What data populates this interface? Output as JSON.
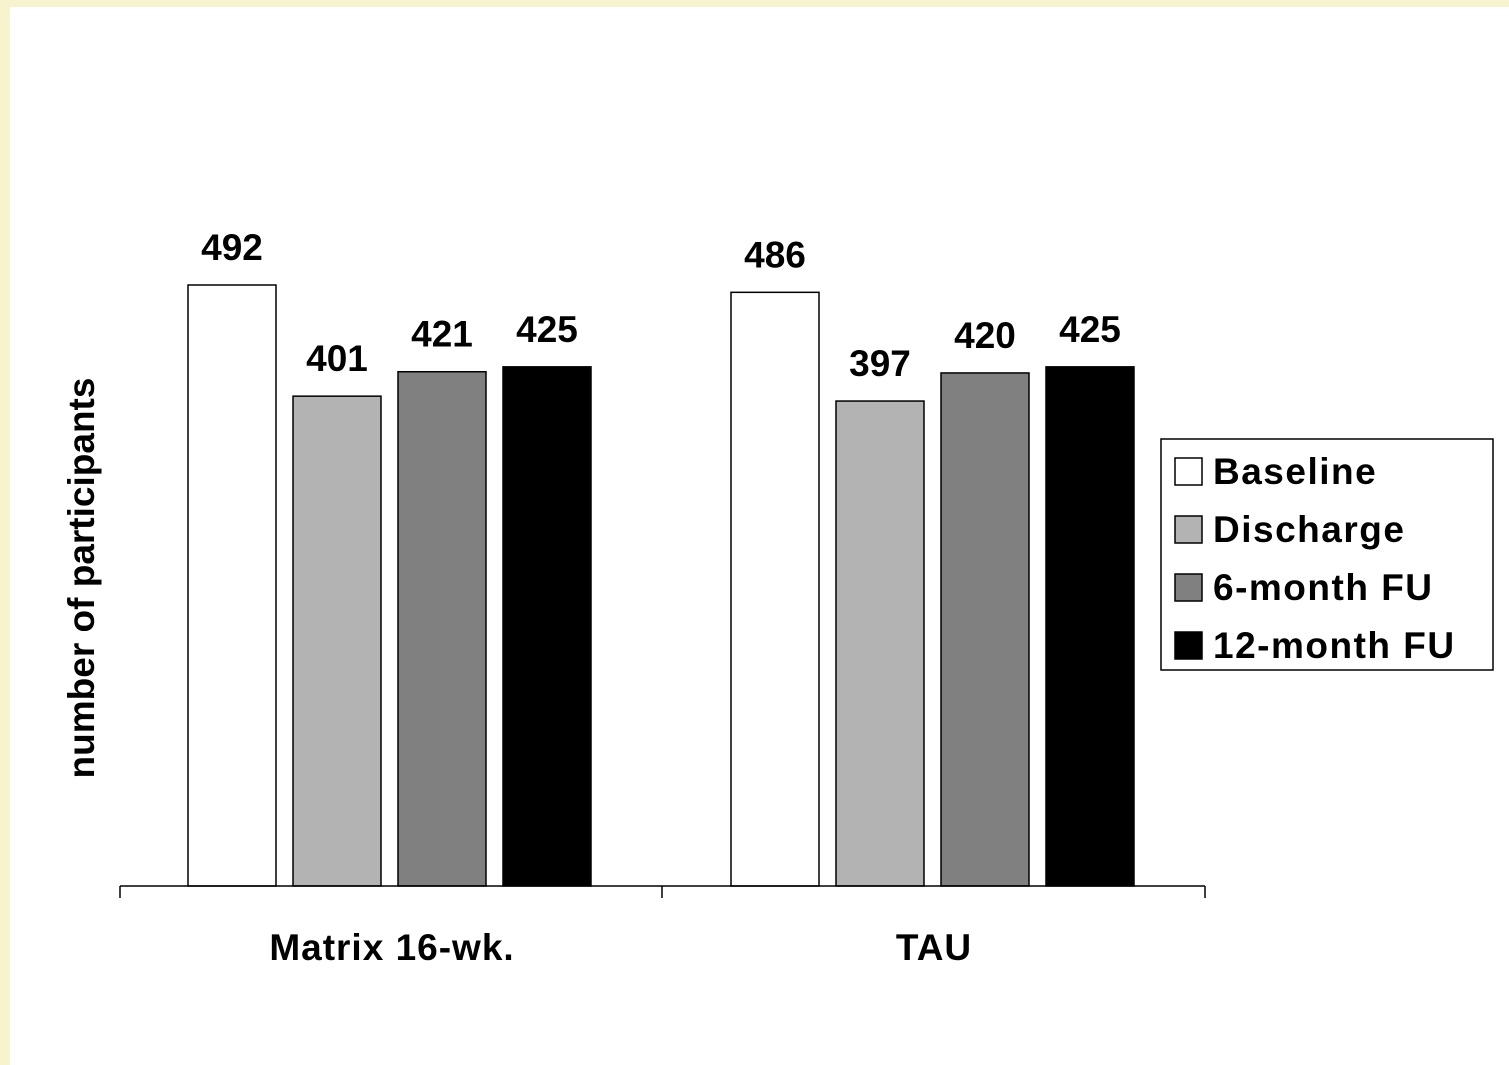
{
  "chart_data": {
    "type": "bar",
    "categories": [
      "Matrix 16-wk.",
      "TAU"
    ],
    "series": [
      {
        "name": "Baseline",
        "values": [
          492,
          486
        ],
        "color": "#ffffff"
      },
      {
        "name": "Discharge",
        "values": [
          401,
          397
        ],
        "color": "#b3b3b3"
      },
      {
        "name": "6-month FU",
        "values": [
          421,
          420
        ],
        "color": "#808080"
      },
      {
        "name": "12-month FU",
        "values": [
          425,
          425
        ],
        "color": "#000000"
      }
    ],
    "title": "",
    "xlabel": "",
    "ylabel": "number of participants",
    "ylim": [
      0,
      540
    ],
    "grid": false,
    "legend_position": "right"
  }
}
